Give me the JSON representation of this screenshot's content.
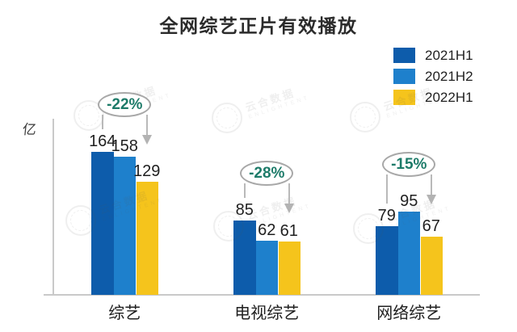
{
  "title": "全网综艺正片有效播放",
  "unit_label": "亿",
  "watermark": {
    "cn": "云合数据",
    "en": "ENLIGHTENT"
  },
  "colors": {
    "series_2021H1": "#0d5cab",
    "series_2021H2": "#1e80cc",
    "series_2022H1": "#f5c41c",
    "annotation_text": "#1d7b69",
    "axis": "#c9c9c9",
    "text": "#1f1f1f"
  },
  "chart_data": {
    "type": "bar",
    "title": "全网综艺正片有效播放",
    "ylabel": "亿",
    "grid": false,
    "legend_position": "top-right",
    "categories": [
      "综艺",
      "电视综艺",
      "网络综艺"
    ],
    "series": [
      {
        "name": "2021H1",
        "color": "#0d5cab",
        "values": [
          164,
          85,
          79
        ]
      },
      {
        "name": "2021H2",
        "color": "#1e80cc",
        "values": [
          158,
          62,
          95
        ]
      },
      {
        "name": "2022H1",
        "color": "#f5c41c",
        "values": [
          129,
          61,
          67
        ]
      }
    ],
    "annotations": [
      {
        "category": "综艺",
        "label": "-22%"
      },
      {
        "category": "电视综艺",
        "label": "-28%"
      },
      {
        "category": "网络综艺",
        "label": "-15%"
      }
    ]
  }
}
